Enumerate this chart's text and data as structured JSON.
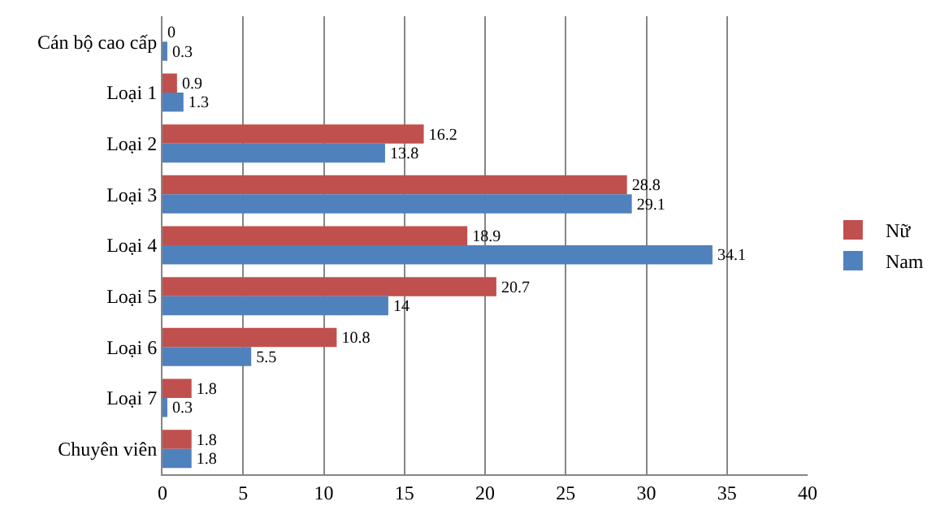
{
  "chart_data": {
    "type": "bar",
    "orientation": "horizontal",
    "categories": [
      "Cán bộ cao cấp",
      "Loại 1",
      "Loại 2",
      "Loại 3",
      "Loại 4",
      "Loại 5",
      "Loại 6",
      "Loại 7",
      "Chuyên viên"
    ],
    "series": [
      {
        "name": "Nữ",
        "color": "#c0504d",
        "values": [
          0,
          0.9,
          16.2,
          28.8,
          18.9,
          20.7,
          10.8,
          1.8,
          1.8
        ]
      },
      {
        "name": "Nam",
        "color": "#4f81bd",
        "values": [
          0.3,
          1.3,
          13.8,
          29.1,
          34.1,
          14,
          5.5,
          0.3,
          1.8
        ]
      }
    ],
    "xlim": [
      0,
      40
    ],
    "xticks": [
      0,
      5,
      10,
      15,
      20,
      25,
      30,
      35,
      40
    ],
    "grid": "x",
    "legend": "right",
    "data_labels": true
  }
}
